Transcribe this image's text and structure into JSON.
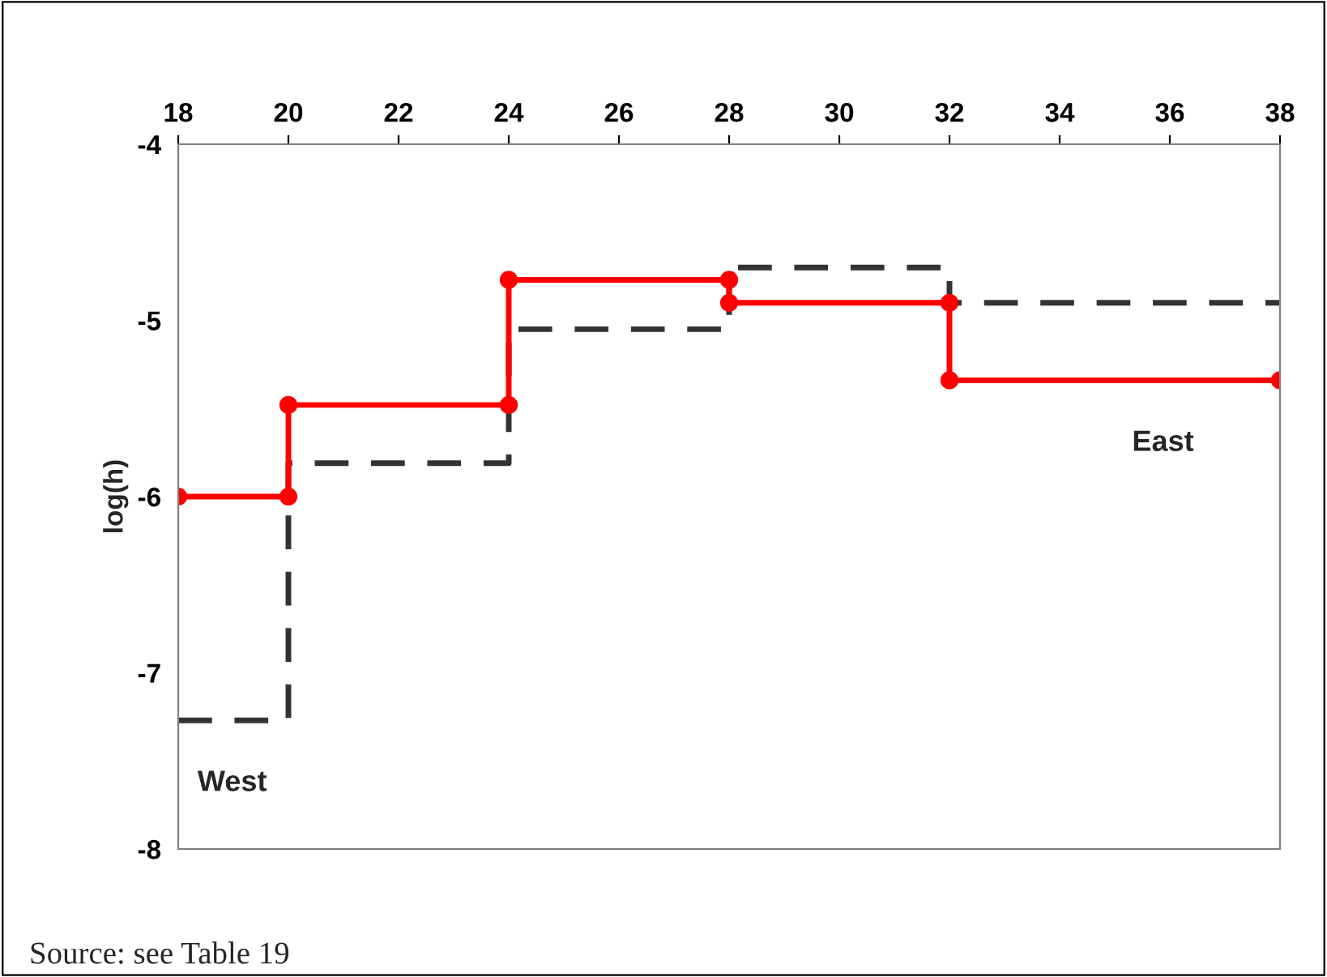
{
  "chart_data": {
    "type": "line",
    "ylabel": "log(h)",
    "series": [
      {
        "type": "step",
        "name": "West",
        "color": "#333333",
        "line_style": "dashed",
        "marker": "none",
        "x": [
          18,
          20,
          24,
          28,
          32,
          38
        ],
        "values": [
          -7.27,
          -5.81,
          -5.05,
          -4.7,
          -4.9,
          -4.9
        ]
      },
      {
        "name": "East",
        "color": "#ff0000",
        "line_style": "solid",
        "marker": "circle",
        "x": [
          18,
          20,
          20,
          24,
          24,
          28,
          28,
          32,
          32,
          38
        ],
        "values": [
          -6.0,
          -6.0,
          -5.48,
          -5.48,
          -4.77,
          -4.77,
          -4.9,
          -4.9,
          -5.34,
          -5.34
        ]
      }
    ],
    "xlim": [
      18,
      38
    ],
    "xticks": [
      18,
      20,
      22,
      24,
      26,
      28,
      30,
      32,
      34,
      36,
      38
    ],
    "ylim": [
      -8,
      -4
    ],
    "yticks": [
      -8,
      -7,
      -6,
      -5,
      -4
    ],
    "grid": false,
    "legend": false,
    "annotations": [
      "Source: see Table 19"
    ]
  }
}
